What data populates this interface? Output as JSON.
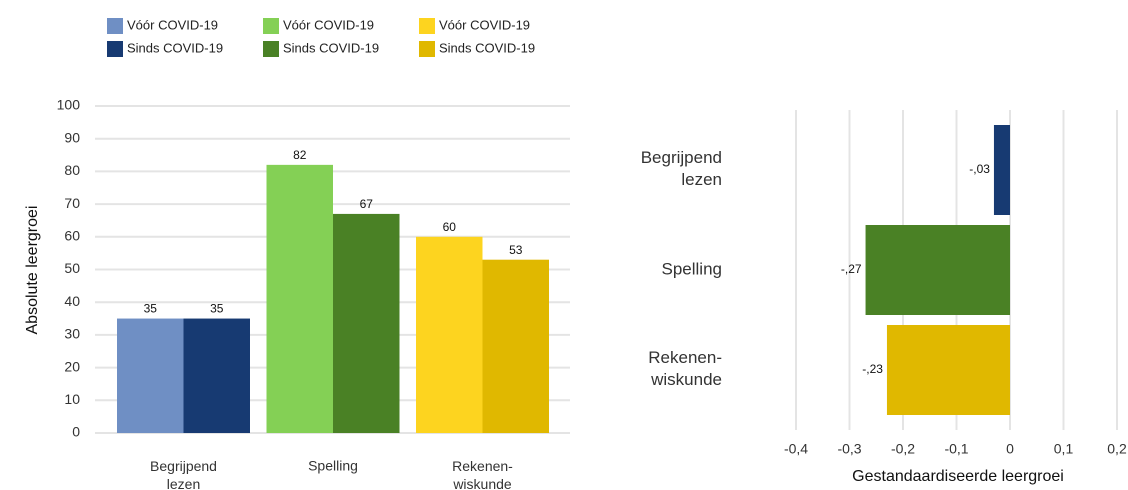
{
  "chart_data": [
    {
      "type": "bar",
      "categories": [
        "Begrijpend\nlezen",
        "Spelling",
        "Rekenen-\nwiskunde"
      ],
      "series": [
        {
          "name": "Vóór COVID-19",
          "colors": [
            "#6f8fc4",
            "#84d055",
            "#fdd41f"
          ],
          "values": [
            35,
            82,
            60
          ]
        },
        {
          "name": "Sinds COVID-19",
          "colors": [
            "#173a72",
            "#4a8125",
            "#e0b800"
          ],
          "values": [
            35,
            67,
            53
          ]
        }
      ],
      "ylabel": "Absolute leergroei",
      "ylim": [
        0,
        100
      ],
      "yticks": [
        0,
        10,
        20,
        30,
        40,
        50,
        60,
        70,
        80,
        90,
        100
      ],
      "grid": true
    },
    {
      "type": "barh",
      "categories": [
        "Begrijpend\nlezen",
        "Spelling",
        "Rekenen-\nwiskunde"
      ],
      "values": [
        -0.03,
        -0.27,
        -0.23
      ],
      "value_labels": [
        "-,03",
        "-,27",
        "-,23"
      ],
      "colors": [
        "#173a72",
        "#4a8125",
        "#e0b800"
      ],
      "xlabel": "Gestandaardiseerde leergroei",
      "xlim": [
        -0.4,
        0.2
      ],
      "xticks": [
        {
          "value": -0.4,
          "label": "-0,4"
        },
        {
          "value": -0.3,
          "label": "-0,3"
        },
        {
          "value": -0.2,
          "label": "-0,2"
        },
        {
          "value": -0.1,
          "label": "-0,1"
        },
        0,
        {
          "value": 0.1,
          "label": "0,1"
        },
        {
          "value": 0.2,
          "label": "0,2"
        }
      ],
      "grid": true
    }
  ]
}
